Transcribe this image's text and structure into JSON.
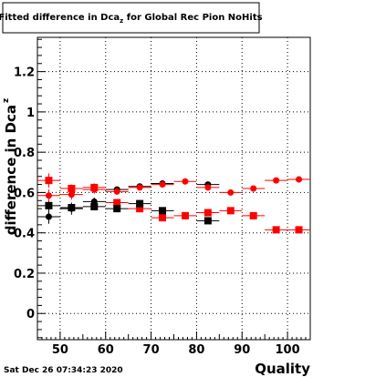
{
  "chart_data": {
    "type": "scatter",
    "title_main": "Fitted difference in Dca",
    "title_sub": "z",
    "title_tail": " for Global Rec Pion NoHits",
    "xlabel": "Quality",
    "ylabel_main": "difference in Dca",
    "ylabel_sub": "z",
    "timestamp": "Sat Dec 26 07:34:23 2020",
    "xlim": [
      45,
      105
    ],
    "ylim": [
      -0.13,
      1.37
    ],
    "x_ticks": [
      50,
      60,
      70,
      80,
      90,
      100
    ],
    "y_ticks": [
      0,
      0.2,
      0.4,
      0.6,
      0.8,
      1,
      1.2
    ],
    "y_tick_labels": [
      "0",
      "0.2",
      "0.4",
      "0.6",
      "0.8",
      "1",
      "1.2"
    ],
    "grid": true,
    "bin_half_width": 2.5,
    "series": [
      {
        "marker": "square",
        "color": "#ff0000",
        "x": [
          47.5,
          52.5,
          57.5,
          62.5,
          67.5,
          72.5,
          77.5,
          82.5,
          87.5,
          92.5,
          97.5,
          102.5
        ],
        "y": [
          0.66,
          0.62,
          0.625,
          0.55,
          0.52,
          0.475,
          0.485,
          0.5,
          0.51,
          0.485,
          0.415,
          0.415
        ],
        "yerr": [
          0.035,
          0.02,
          0.02,
          0.015,
          0.012,
          0.012,
          0.01,
          0.01,
          0.01,
          0.01,
          0.008,
          0.008
        ]
      },
      {
        "marker": "square",
        "color": "#000000",
        "x": [
          47.5,
          52.5,
          57.5,
          62.5,
          67.5,
          72.5,
          82.5
        ],
        "y": [
          0.535,
          0.525,
          0.53,
          0.52,
          0.545,
          0.51,
          0.46
        ],
        "yerr": [
          0.025,
          0.02,
          0.015,
          0.012,
          0.012,
          0.01,
          0.01
        ]
      },
      {
        "marker": "circle",
        "color": "#000000",
        "x": [
          47.5,
          52.5,
          57.5,
          62.5,
          67.5,
          72.5,
          82.5
        ],
        "y": [
          0.48,
          0.52,
          0.555,
          0.615,
          0.63,
          0.645,
          0.64
        ],
        "yerr": [
          0.035,
          0.03,
          0.02,
          0.015,
          0.012,
          0.01,
          0.01
        ]
      },
      {
        "marker": "circle",
        "color": "#ff0000",
        "x": [
          47.5,
          52.5,
          57.5,
          62.5,
          67.5,
          72.5,
          77.5,
          82.5,
          87.5,
          92.5,
          97.5,
          102.5
        ],
        "y": [
          0.585,
          0.59,
          0.615,
          0.605,
          0.625,
          0.64,
          0.655,
          0.625,
          0.6,
          0.62,
          0.66,
          0.665
        ],
        "yerr": [
          0.03,
          0.025,
          0.02,
          0.015,
          0.012,
          0.01,
          0.01,
          0.01,
          0.01,
          0.01,
          0.008,
          0.008
        ]
      }
    ]
  }
}
